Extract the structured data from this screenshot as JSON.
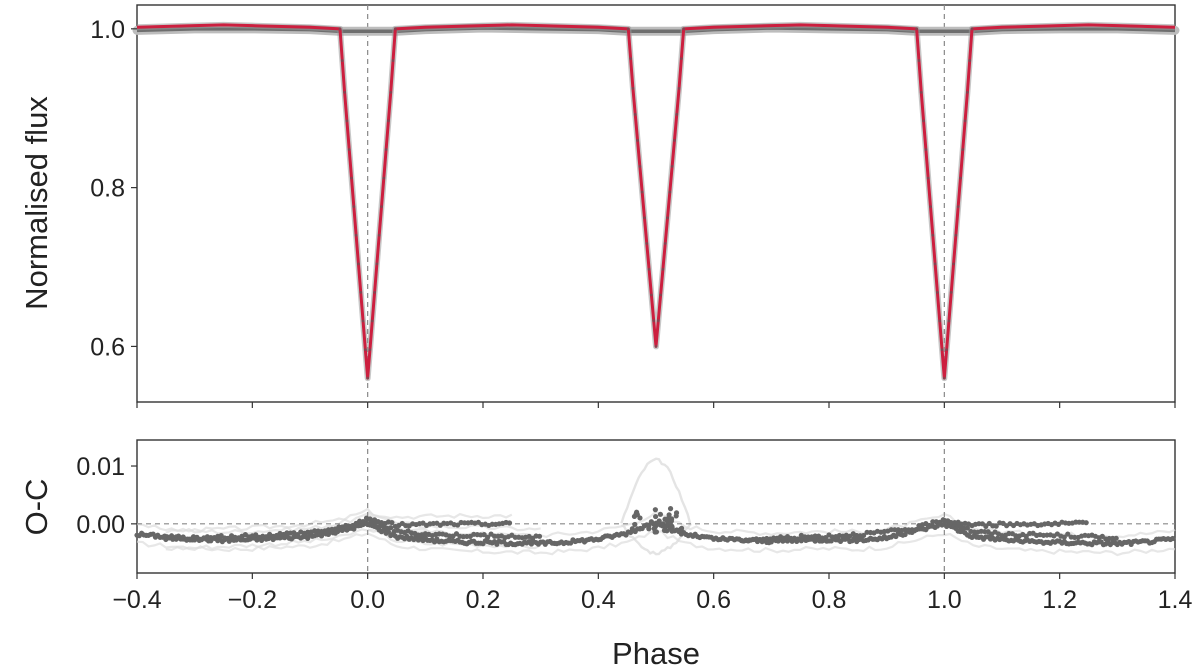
{
  "chart_data": [
    {
      "panel": "light-curve",
      "type": "line",
      "title": "",
      "xlabel": "",
      "ylabel": "Normalised flux",
      "xlim": [
        -0.4,
        1.4
      ],
      "ylim": [
        0.53,
        1.03
      ],
      "yticks": [
        0.6,
        0.8,
        1.0
      ],
      "ytick_labels": [
        "0.6",
        "0.8",
        "1.0"
      ],
      "xticks": [
        -0.4,
        -0.2,
        0.0,
        0.2,
        0.4,
        0.6,
        0.8,
        1.0,
        1.2,
        1.4
      ],
      "xtick_labels": [
        "",
        "",
        "",
        "",
        "",
        "",
        "",
        "",
        "",
        ""
      ],
      "vlines": [
        0.0,
        1.0
      ],
      "colors": {
        "model": "#cc1f3f",
        "data": "#6e6e6e",
        "reference": "#888888"
      },
      "series": [
        {
          "role": "model",
          "x": [
            -0.4,
            -0.3,
            -0.25,
            -0.2,
            -0.1,
            -0.048,
            -0.04,
            -0.03,
            -0.02,
            -0.01,
            0.0,
            0.01,
            0.02,
            0.03,
            0.04,
            0.048,
            0.1,
            0.2,
            0.25,
            0.3,
            0.4,
            0.452,
            0.46,
            0.47,
            0.48,
            0.49,
            0.5,
            0.51,
            0.52,
            0.53,
            0.54,
            0.548,
            0.6,
            0.7,
            0.75,
            0.8,
            0.9,
            0.952,
            0.96,
            0.97,
            0.98,
            0.99,
            1.0,
            1.01,
            1.02,
            1.03,
            1.04,
            1.048,
            1.1,
            1.2,
            1.25,
            1.3,
            1.4
          ],
          "y": [
            1.002,
            1.004,
            1.005,
            1.004,
            1.002,
            1.0,
            0.92,
            0.83,
            0.74,
            0.65,
            0.56,
            0.65,
            0.74,
            0.83,
            0.92,
            1.0,
            1.002,
            1.004,
            1.005,
            1.004,
            1.002,
            1.0,
            0.925,
            0.843,
            0.762,
            0.681,
            0.6,
            0.681,
            0.762,
            0.843,
            0.925,
            1.0,
            1.002,
            1.004,
            1.005,
            1.004,
            1.002,
            1.0,
            0.92,
            0.83,
            0.74,
            0.65,
            0.56,
            0.65,
            0.74,
            0.83,
            0.92,
            1.0,
            1.002,
            1.004,
            1.005,
            1.004,
            1.002
          ]
        },
        {
          "role": "data-band",
          "x": [
            -0.4,
            -0.3,
            -0.2,
            -0.1,
            -0.05,
            0.05,
            0.1,
            0.2,
            0.3,
            0.4,
            0.45,
            0.55,
            0.6,
            0.7,
            0.8,
            0.9,
            0.95,
            1.05,
            1.1,
            1.2,
            1.3,
            1.4
          ],
          "y": [
            0.998,
            1.0,
            1.0,
            0.999,
            0.997,
            0.997,
            0.999,
            1.001,
            1.0,
            0.999,
            0.997,
            0.997,
            0.999,
            1.001,
            1.0,
            0.999,
            0.997,
            0.997,
            0.999,
            1.0,
            1.0,
            0.998
          ]
        }
      ]
    },
    {
      "panel": "residuals",
      "type": "scatter",
      "title": "",
      "xlabel": "Phase",
      "ylabel": "O-C",
      "xlim": [
        -0.4,
        1.4
      ],
      "ylim": [
        -0.0085,
        0.0145
      ],
      "yticks": [
        0.0,
        0.01
      ],
      "ytick_labels": [
        "0.00",
        "0.01"
      ],
      "xticks": [
        -0.4,
        -0.2,
        0.0,
        0.2,
        0.4,
        0.6,
        0.8,
        1.0,
        1.2,
        1.4
      ],
      "xtick_labels": [
        "−0.4",
        "−0.2",
        "0.0",
        "0.2",
        "0.4",
        "0.6",
        "0.8",
        "1.0",
        "1.2",
        "1.4"
      ],
      "vlines": [
        0.0,
        1.0
      ],
      "hlines": [
        0.0
      ],
      "colors": {
        "points": "#666666",
        "background": "#dddddd",
        "reference": "#888888"
      },
      "series": [
        {
          "role": "lower-track",
          "x": [
            -0.4,
            -0.35,
            -0.3,
            -0.25,
            -0.2,
            -0.15,
            -0.1,
            -0.05,
            0.0,
            0.05,
            0.1,
            0.15,
            0.2,
            0.25,
            0.3,
            0.35,
            0.4,
            0.45,
            0.5,
            0.55,
            0.6,
            0.65,
            0.7,
            0.75,
            0.8,
            0.85,
            0.9,
            0.95,
            1.0,
            1.05,
            1.1,
            1.15,
            1.2,
            1.25,
            1.3,
            1.35,
            1.4
          ],
          "y": [
            -0.0018,
            -0.0022,
            -0.0026,
            -0.0028,
            -0.0027,
            -0.0024,
            -0.0022,
            -0.0013,
            0.0,
            -0.0022,
            -0.0027,
            -0.0031,
            -0.0032,
            -0.0033,
            -0.0034,
            -0.0031,
            -0.0026,
            -0.0016,
            0.0004,
            -0.0018,
            -0.0026,
            -0.0028,
            -0.003,
            -0.0028,
            -0.0027,
            -0.0028,
            -0.0024,
            -0.0012,
            0.0,
            -0.0022,
            -0.0027,
            -0.0031,
            -0.0032,
            -0.0033,
            -0.0034,
            -0.0031,
            -0.0026
          ]
        },
        {
          "role": "middle-track",
          "x": [
            -0.35,
            -0.3,
            -0.25,
            -0.2,
            -0.15,
            -0.1,
            -0.05,
            0.0,
            0.05,
            0.1,
            0.15,
            0.2,
            0.25,
            0.3
          ],
          "y": [
            -0.0027,
            -0.0025,
            -0.0023,
            -0.0021,
            -0.0018,
            -0.0014,
            -0.0008,
            0.0008,
            -0.0013,
            -0.0018,
            -0.0019,
            -0.002,
            -0.0022,
            -0.0024
          ]
        },
        {
          "role": "upper-track",
          "x": [
            0.0,
            0.05,
            0.1,
            0.15,
            0.2,
            0.25
          ],
          "y": [
            0.0006,
            -0.0002,
            -0.0001,
            0.0,
            0.0,
            0.0
          ]
        }
      ]
    }
  ]
}
